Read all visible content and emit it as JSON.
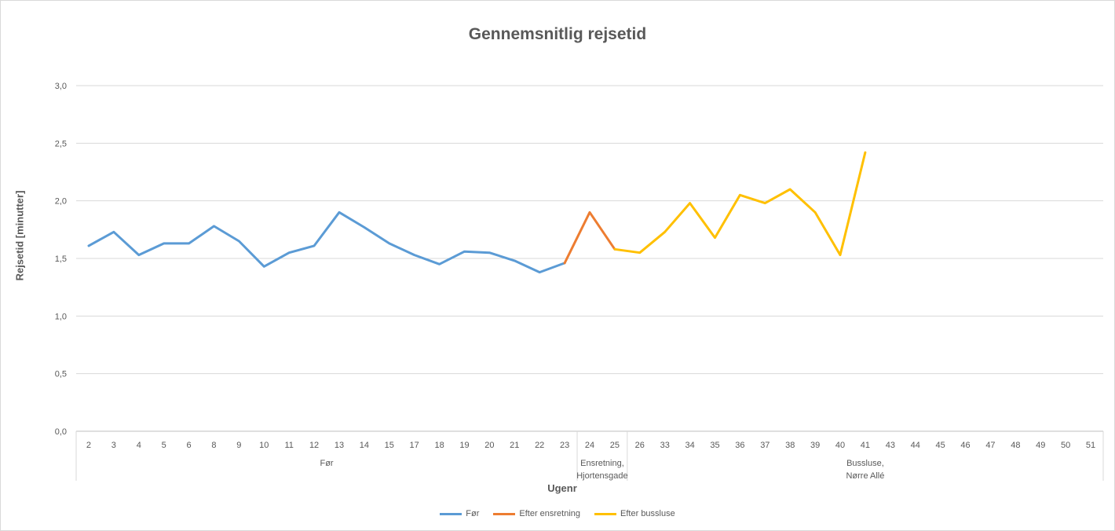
{
  "chart_data": {
    "type": "line",
    "title": "Gennemsnitlig rejsetid",
    "xlabel": "Ugenr",
    "ylabel": "Rejsetid [minutter]",
    "ylim": [
      0,
      3
    ],
    "y_ticks": [
      "0,0",
      "0,5",
      "1,0",
      "1,5",
      "2,0",
      "2,5",
      "3,0"
    ],
    "y_tick_values": [
      0,
      0.5,
      1.0,
      1.5,
      2.0,
      2.5,
      3.0
    ],
    "grid": true,
    "legend_position": "bottom",
    "categories": [
      "2",
      "3",
      "4",
      "5",
      "6",
      "8",
      "9",
      "10",
      "11",
      "12",
      "13",
      "14",
      "15",
      "17",
      "18",
      "19",
      "20",
      "21",
      "22",
      "23",
      "24",
      "25",
      "26",
      "33",
      "34",
      "35",
      "36",
      "37",
      "38",
      "39",
      "40",
      "41",
      "43",
      "44",
      "45",
      "46",
      "47",
      "48",
      "49",
      "50",
      "51"
    ],
    "groups": [
      {
        "label": "Før",
        "start": 0,
        "end": 19
      },
      {
        "label": "Ensretning, Hjortensgade",
        "start": 20,
        "end": 21
      },
      {
        "label": "Bussluse, Nørre Allé",
        "start": 22,
        "end": 40
      }
    ],
    "series": [
      {
        "name": "Før",
        "color": "#5b9bd5",
        "values": [
          1.61,
          1.73,
          1.53,
          1.63,
          1.63,
          1.78,
          1.65,
          1.43,
          1.55,
          1.61,
          1.9,
          1.77,
          1.63,
          1.53,
          1.45,
          1.56,
          1.55,
          1.48,
          1.38,
          1.46,
          null,
          null,
          null,
          null,
          null,
          null,
          null,
          null,
          null,
          null,
          null,
          null,
          null,
          null,
          null,
          null,
          null,
          null,
          null,
          null,
          null
        ]
      },
      {
        "name": "Efter ensretning",
        "color": "#ed7d31",
        "values": [
          null,
          null,
          null,
          null,
          null,
          null,
          null,
          null,
          null,
          null,
          null,
          null,
          null,
          null,
          null,
          null,
          null,
          null,
          null,
          1.46,
          1.9,
          1.58,
          null,
          null,
          null,
          null,
          null,
          null,
          null,
          null,
          null,
          null,
          null,
          null,
          null,
          null,
          null,
          null,
          null,
          null,
          null
        ]
      },
      {
        "name": "Efter bussluse",
        "color": "#ffc000",
        "values": [
          null,
          null,
          null,
          null,
          null,
          null,
          null,
          null,
          null,
          null,
          null,
          null,
          null,
          null,
          null,
          null,
          null,
          null,
          null,
          null,
          null,
          1.58,
          1.55,
          1.73,
          1.98,
          1.68,
          2.05,
          1.98,
          2.1,
          1.9,
          1.53,
          2.42,
          null,
          null,
          null,
          null,
          null,
          null,
          null,
          null,
          null
        ]
      }
    ]
  }
}
